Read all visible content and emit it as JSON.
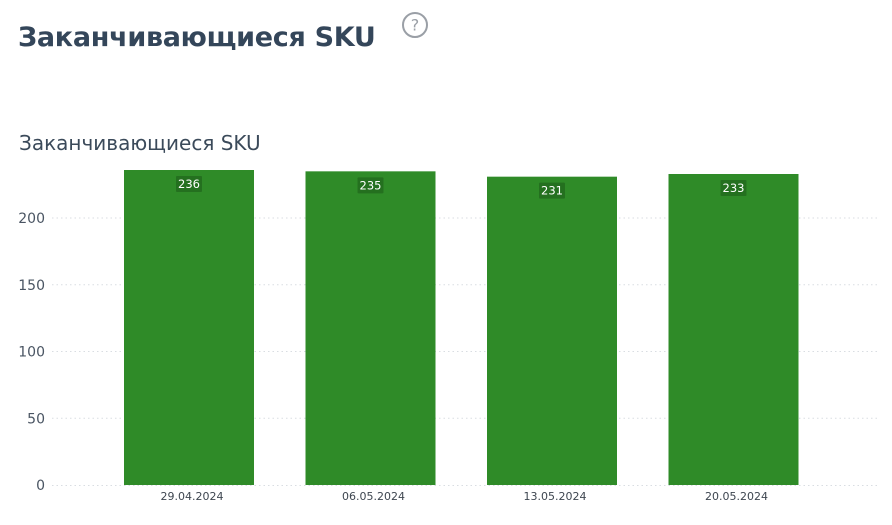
{
  "header": {
    "title": "Заканчивающиеся SKU",
    "help_icon": "question-circle-icon"
  },
  "colors": {
    "bar": "#2f8b28",
    "label_bg": "#24701f",
    "grid": "#d9dde2",
    "title": "#34465a"
  },
  "chart_data": {
    "type": "bar",
    "title": "Заканчивающиеся SKU",
    "xlabel": "",
    "ylabel": "",
    "categories": [
      "29.04.2024",
      "06.05.2024",
      "13.05.2024",
      "20.05.2024"
    ],
    "values": [
      236,
      235,
      231,
      233
    ],
    "ylim": [
      0,
      236
    ],
    "yticks": [
      0,
      50,
      100,
      150,
      200
    ],
    "grid": true,
    "legend": "none",
    "data_labels": true
  }
}
